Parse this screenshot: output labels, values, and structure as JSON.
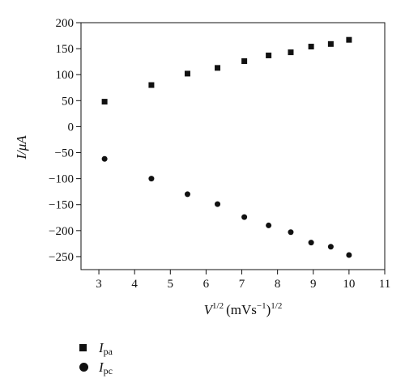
{
  "chart_data": {
    "type": "scatter",
    "xlabel": "V",
    "xlabel_sup": "1/2",
    "xlabel_unit": "(mVs",
    "xlabel_unit_sup": "−1",
    "xlabel_close": ")",
    "xlabel_close_sup": "1/2",
    "ylabel": "I/μA",
    "xlim": [
      2.5,
      11
    ],
    "ylim": [
      -275,
      200
    ],
    "x_ticks": [
      "3",
      "4",
      "5",
      "6",
      "7",
      "8",
      "9",
      "10",
      "11"
    ],
    "y_ticks": [
      "200",
      "150",
      "100",
      "50",
      "0",
      "−50",
      "−100",
      "−150",
      "−200",
      "−250"
    ],
    "legend_position": "bottom-left",
    "series": [
      {
        "name": "I",
        "subscript": "pa",
        "marker": "square",
        "color": "#111111",
        "x": [
          3.16,
          4.47,
          5.48,
          6.32,
          7.07,
          7.75,
          8.37,
          8.94,
          9.49,
          10.0
        ],
        "y": [
          48,
          80,
          102,
          113,
          126,
          137,
          143,
          154,
          159,
          167
        ]
      },
      {
        "name": "I",
        "subscript": "pc",
        "marker": "circle",
        "color": "#111111",
        "x": [
          3.16,
          4.47,
          5.48,
          6.32,
          7.07,
          7.75,
          8.37,
          8.94,
          9.49,
          10.0
        ],
        "y": [
          -62,
          -100,
          -130,
          -149,
          -174,
          -190,
          -203,
          -223,
          -231,
          -247
        ]
      }
    ]
  }
}
